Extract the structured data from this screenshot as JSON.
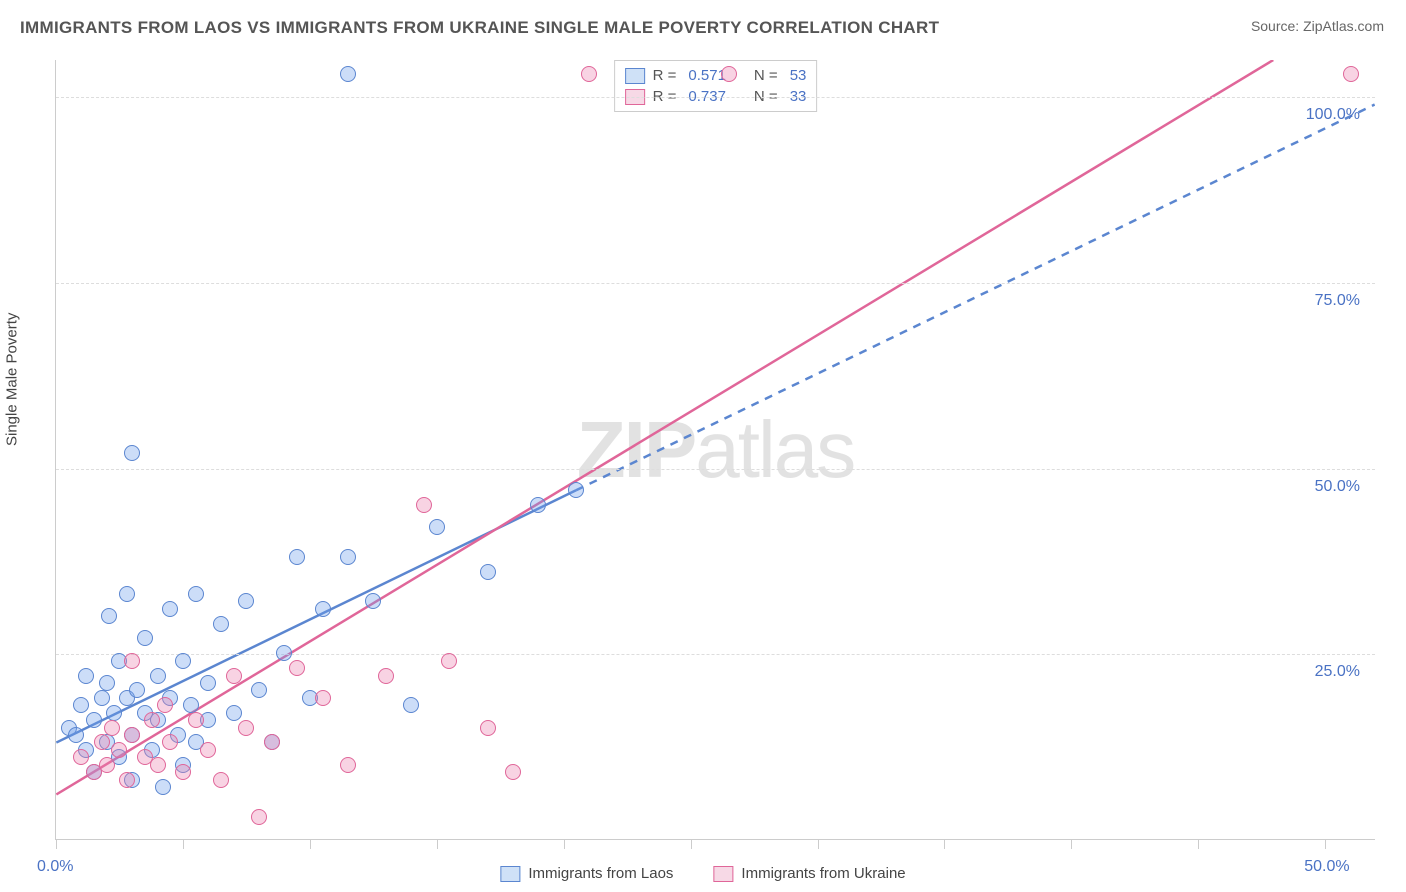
{
  "title": "IMMIGRANTS FROM LAOS VS IMMIGRANTS FROM UKRAINE SINGLE MALE POVERTY CORRELATION CHART",
  "source": "Source: ZipAtlas.com",
  "watermark_bold": "ZIP",
  "watermark_rest": "atlas",
  "ylabel": "Single Male Poverty",
  "chart": {
    "type": "scatter",
    "xlim": [
      0,
      52
    ],
    "ylim": [
      0,
      105
    ],
    "x_tick_label_left": "0.0%",
    "x_tick_label_right": "50.0%",
    "x_tick_positions": [
      0,
      5,
      10,
      15,
      20,
      25,
      30,
      35,
      40,
      45,
      50
    ],
    "y_ticks": [
      {
        "v": 25,
        "label": "25.0%"
      },
      {
        "v": 50,
        "label": "50.0%"
      },
      {
        "v": 75,
        "label": "75.0%"
      },
      {
        "v": 100,
        "label": "100.0%"
      }
    ],
    "grid_color": "#dddddd",
    "background_color": "#ffffff",
    "point_radius": 8,
    "series": [
      {
        "name": "Immigrants from Laos",
        "fill": "rgba(109,158,235,0.35)",
        "stroke": "#5b86d0",
        "swatch_fill": "#cfe1f7",
        "swatch_border": "#5b86d0",
        "R": "0.571",
        "N": "53",
        "trend_solid": {
          "x1": 0,
          "y1": 13,
          "x2": 20.5,
          "y2": 47
        },
        "trend_dash": {
          "x1": 20.5,
          "y1": 47,
          "x2": 52,
          "y2": 99
        },
        "points": [
          [
            0.5,
            15
          ],
          [
            0.8,
            14
          ],
          [
            1.0,
            18
          ],
          [
            1.2,
            12
          ],
          [
            1.2,
            22
          ],
          [
            1.5,
            16
          ],
          [
            1.5,
            9
          ],
          [
            1.8,
            19
          ],
          [
            2.0,
            13
          ],
          [
            2.0,
            21
          ],
          [
            2.1,
            30
          ],
          [
            2.3,
            17
          ],
          [
            2.5,
            24
          ],
          [
            2.5,
            11
          ],
          [
            2.8,
            19
          ],
          [
            2.8,
            33
          ],
          [
            3.0,
            14
          ],
          [
            3.0,
            8
          ],
          [
            3.2,
            20
          ],
          [
            3.5,
            17
          ],
          [
            3.5,
            27
          ],
          [
            3.8,
            12
          ],
          [
            4.0,
            22
          ],
          [
            4.0,
            16
          ],
          [
            4.2,
            7
          ],
          [
            4.5,
            19
          ],
          [
            4.5,
            31
          ],
          [
            4.8,
            14
          ],
          [
            5.0,
            10
          ],
          [
            5.0,
            24
          ],
          [
            5.3,
            18
          ],
          [
            5.5,
            33
          ],
          [
            5.5,
            13
          ],
          [
            6.0,
            21
          ],
          [
            6.0,
            16
          ],
          [
            6.5,
            29
          ],
          [
            7.0,
            17
          ],
          [
            7.5,
            32
          ],
          [
            8.0,
            20
          ],
          [
            8.5,
            13
          ],
          [
            9.0,
            25
          ],
          [
            9.5,
            38
          ],
          [
            10.0,
            19
          ],
          [
            10.5,
            31
          ],
          [
            11.5,
            38
          ],
          [
            12.5,
            32
          ],
          [
            14.0,
            18
          ],
          [
            15.0,
            42
          ],
          [
            17.0,
            36
          ],
          [
            19.0,
            45
          ],
          [
            20.5,
            47
          ],
          [
            3.0,
            52
          ],
          [
            11.5,
            103
          ]
        ]
      },
      {
        "name": "Immigrants from Ukraine",
        "fill": "rgba(234,128,176,0.35)",
        "stroke": "#e06699",
        "swatch_fill": "#f7d9e6",
        "swatch_border": "#e06699",
        "R": "0.737",
        "N": "33",
        "trend_solid": {
          "x1": 0,
          "y1": 6,
          "x2": 48,
          "y2": 105
        },
        "trend_dash": null,
        "points": [
          [
            1.0,
            11
          ],
          [
            1.5,
            9
          ],
          [
            1.8,
            13
          ],
          [
            2.0,
            10
          ],
          [
            2.2,
            15
          ],
          [
            2.5,
            12
          ],
          [
            2.8,
            8
          ],
          [
            3.0,
            14
          ],
          [
            3.0,
            24
          ],
          [
            3.5,
            11
          ],
          [
            3.8,
            16
          ],
          [
            4.0,
            10
          ],
          [
            4.3,
            18
          ],
          [
            4.5,
            13
          ],
          [
            5.0,
            9
          ],
          [
            5.5,
            16
          ],
          [
            6.0,
            12
          ],
          [
            6.5,
            8
          ],
          [
            7.0,
            22
          ],
          [
            7.5,
            15
          ],
          [
            8.0,
            3
          ],
          [
            8.5,
            13
          ],
          [
            9.5,
            23
          ],
          [
            10.5,
            19
          ],
          [
            11.5,
            10
          ],
          [
            13.0,
            22
          ],
          [
            14.5,
            45
          ],
          [
            15.5,
            24
          ],
          [
            17.0,
            15
          ],
          [
            18.0,
            9
          ],
          [
            21.0,
            103
          ],
          [
            26.5,
            103
          ],
          [
            51.0,
            103
          ]
        ]
      }
    ]
  },
  "legend_top_labels": {
    "R": "R  =",
    "N": "N  ="
  },
  "tick_label_color": "#4a72c4",
  "title_color": "#555555",
  "title_fontsize": 17
}
